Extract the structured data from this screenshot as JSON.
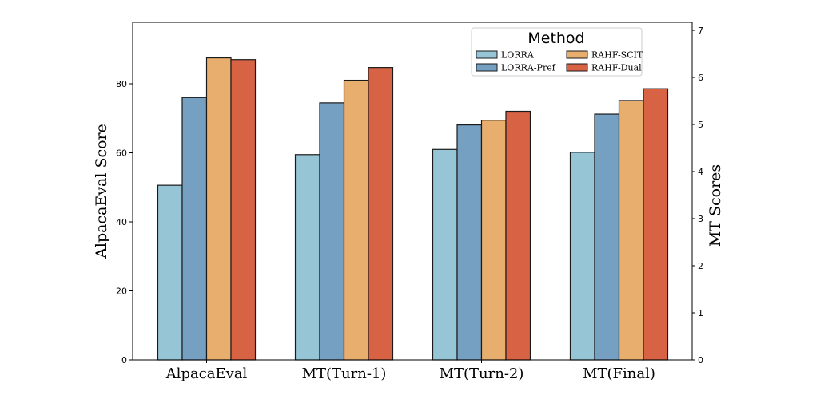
{
  "chart_data": {
    "type": "bar",
    "categories": [
      "AlpacaEval",
      "MT(Turn-1)",
      "MT(Turn-2)",
      "MT(Final)"
    ],
    "series": [
      {
        "name": "LORRA",
        "color": "#96c6d6",
        "values": [
          50.6,
          4.36,
          4.47,
          4.41
        ]
      },
      {
        "name": "LORRA-Pref",
        "color": "#76a0c1",
        "values": [
          76.0,
          5.46,
          4.99,
          5.22
        ]
      },
      {
        "name": "RAHF-SCIT",
        "color": "#e8ae6e",
        "values": [
          87.5,
          5.94,
          5.09,
          5.51
        ]
      },
      {
        "name": "RAHF-Dual",
        "color": "#d86344",
        "values": [
          87.0,
          6.21,
          5.28,
          5.76
        ]
      }
    ],
    "axis_of_category": [
      "left",
      "right",
      "right",
      "right"
    ],
    "ylabel": "AlpacaEval Score",
    "ylabel_right": "MT Scores",
    "ylim": [
      0,
      97.8
    ],
    "ylim_right": [
      0,
      7.17
    ],
    "yticks": [
      0,
      20,
      40,
      60,
      80
    ],
    "yticks_right": [
      0,
      1,
      2,
      3,
      4,
      5,
      6,
      7
    ],
    "legend": {
      "title": "Method",
      "placement": "top-right",
      "columns": 2
    },
    "grid": false
  }
}
